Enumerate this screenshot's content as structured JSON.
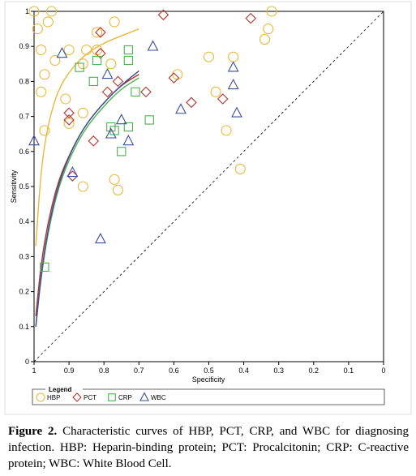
{
  "caption": {
    "label": "Figure 2.",
    "text": "Characteristic curves of HBP, PCT, CRP, and WBC for diagnosing infection. HBP: Heparin-binding protein; PCT: Procalcitonin; CRP: C-reactive protein; WBC: White Blood Cell."
  },
  "chart_data": {
    "type": "scatter",
    "title": "",
    "xlabel": "Specificity",
    "ylabel": "Sensitivity",
    "xlim": [
      1,
      0
    ],
    "ylim": [
      0,
      1
    ],
    "x_ticks": [
      "1",
      "0.9",
      "0.8",
      "0.7",
      "0.6",
      "0.5",
      "0.4",
      "0.3",
      "0.2",
      "0.1",
      "0"
    ],
    "y_ticks": [
      "0",
      "0.1",
      "0.2",
      "0.3",
      "0.4",
      "0.5",
      "0.6",
      "0.7",
      "0.8",
      "0.9",
      "1"
    ],
    "grid": false,
    "reference_line": "diagonal dashed",
    "legend": {
      "title": "Legend",
      "placement": "bottom",
      "entries": [
        {
          "label": "HBP",
          "marker": "circle",
          "color": "#E8B83A"
        },
        {
          "label": "PCT",
          "marker": "diamond",
          "color": "#B5332C"
        },
        {
          "label": "CRP",
          "marker": "square",
          "color": "#4CAF50"
        },
        {
          "label": "WBC",
          "marker": "triangle",
          "color": "#3A4D9A"
        }
      ]
    },
    "series": [
      {
        "name": "HBP",
        "marker": "circle",
        "color": "#E8B83A",
        "points": [
          [
            1.0,
            1.0
          ],
          [
            0.95,
            1.0
          ],
          [
            0.32,
            1.0
          ],
          [
            0.99,
            0.95
          ],
          [
            0.96,
            0.97
          ],
          [
            0.77,
            0.97
          ],
          [
            0.33,
            0.95
          ],
          [
            0.82,
            0.94
          ],
          [
            0.34,
            0.92
          ],
          [
            0.98,
            0.89
          ],
          [
            0.9,
            0.89
          ],
          [
            0.85,
            0.89
          ],
          [
            0.82,
            0.89
          ],
          [
            0.5,
            0.87
          ],
          [
            0.43,
            0.87
          ],
          [
            0.94,
            0.86
          ],
          [
            0.86,
            0.85
          ],
          [
            0.78,
            0.85
          ],
          [
            0.97,
            0.82
          ],
          [
            0.59,
            0.82
          ],
          [
            0.48,
            0.77
          ],
          [
            0.98,
            0.77
          ],
          [
            0.91,
            0.75
          ],
          [
            0.86,
            0.71
          ],
          [
            0.9,
            0.68
          ],
          [
            0.97,
            0.66
          ],
          [
            0.45,
            0.66
          ],
          [
            0.41,
            0.55
          ],
          [
            0.77,
            0.52
          ],
          [
            0.86,
            0.5
          ],
          [
            0.76,
            0.49
          ]
        ],
        "curve": [
          [
            0.995,
            0.33
          ],
          [
            0.98,
            0.55
          ],
          [
            0.96,
            0.68
          ],
          [
            0.93,
            0.78
          ],
          [
            0.89,
            0.84
          ],
          [
            0.85,
            0.88
          ],
          [
            0.8,
            0.91
          ],
          [
            0.75,
            0.93
          ],
          [
            0.7,
            0.95
          ]
        ]
      },
      {
        "name": "PCT",
        "marker": "diamond",
        "color": "#B5332C",
        "points": [
          [
            0.63,
            0.99
          ],
          [
            0.38,
            0.98
          ],
          [
            0.81,
            0.94
          ],
          [
            0.81,
            0.88
          ],
          [
            0.76,
            0.8
          ],
          [
            0.6,
            0.81
          ],
          [
            0.79,
            0.77
          ],
          [
            0.68,
            0.77
          ],
          [
            0.55,
            0.74
          ],
          [
            0.46,
            0.75
          ],
          [
            0.9,
            0.71
          ],
          [
            0.9,
            0.69
          ],
          [
            0.83,
            0.63
          ],
          [
            0.89,
            0.53
          ]
        ],
        "curve": [
          [
            0.995,
            0.13
          ],
          [
            0.98,
            0.28
          ],
          [
            0.96,
            0.4
          ],
          [
            0.93,
            0.52
          ],
          [
            0.89,
            0.61
          ],
          [
            0.85,
            0.68
          ],
          [
            0.8,
            0.74
          ],
          [
            0.75,
            0.79
          ],
          [
            0.7,
            0.82
          ]
        ]
      },
      {
        "name": "CRP",
        "marker": "square",
        "color": "#4CAF50",
        "points": [
          [
            0.73,
            0.89
          ],
          [
            0.87,
            0.84
          ],
          [
            0.82,
            0.86
          ],
          [
            0.73,
            0.86
          ],
          [
            0.83,
            0.8
          ],
          [
            0.71,
            0.77
          ],
          [
            0.67,
            0.69
          ],
          [
            0.78,
            0.67
          ],
          [
            0.77,
            0.66
          ],
          [
            0.73,
            0.67
          ],
          [
            0.75,
            0.6
          ],
          [
            0.97,
            0.27
          ]
        ],
        "curve": [
          [
            0.995,
            0.1
          ],
          [
            0.98,
            0.24
          ],
          [
            0.96,
            0.37
          ],
          [
            0.93,
            0.5
          ],
          [
            0.89,
            0.6
          ],
          [
            0.85,
            0.67
          ],
          [
            0.8,
            0.73
          ],
          [
            0.75,
            0.78
          ],
          [
            0.7,
            0.81
          ]
        ]
      },
      {
        "name": "WBC",
        "marker": "triangle",
        "color": "#3A4D9A",
        "points": [
          [
            0.66,
            0.9
          ],
          [
            0.92,
            0.88
          ],
          [
            0.79,
            0.82
          ],
          [
            0.43,
            0.84
          ],
          [
            0.43,
            0.79
          ],
          [
            0.58,
            0.72
          ],
          [
            0.42,
            0.71
          ],
          [
            0.75,
            0.69
          ],
          [
            0.78,
            0.65
          ],
          [
            0.73,
            0.63
          ],
          [
            1.0,
            0.63
          ],
          [
            0.89,
            0.54
          ],
          [
            0.81,
            0.35
          ]
        ],
        "curve": [
          [
            0.995,
            0.1
          ],
          [
            0.98,
            0.25
          ],
          [
            0.96,
            0.38
          ],
          [
            0.93,
            0.51
          ],
          [
            0.89,
            0.61
          ],
          [
            0.85,
            0.68
          ],
          [
            0.8,
            0.74
          ],
          [
            0.75,
            0.79
          ],
          [
            0.7,
            0.83
          ]
        ]
      }
    ]
  }
}
